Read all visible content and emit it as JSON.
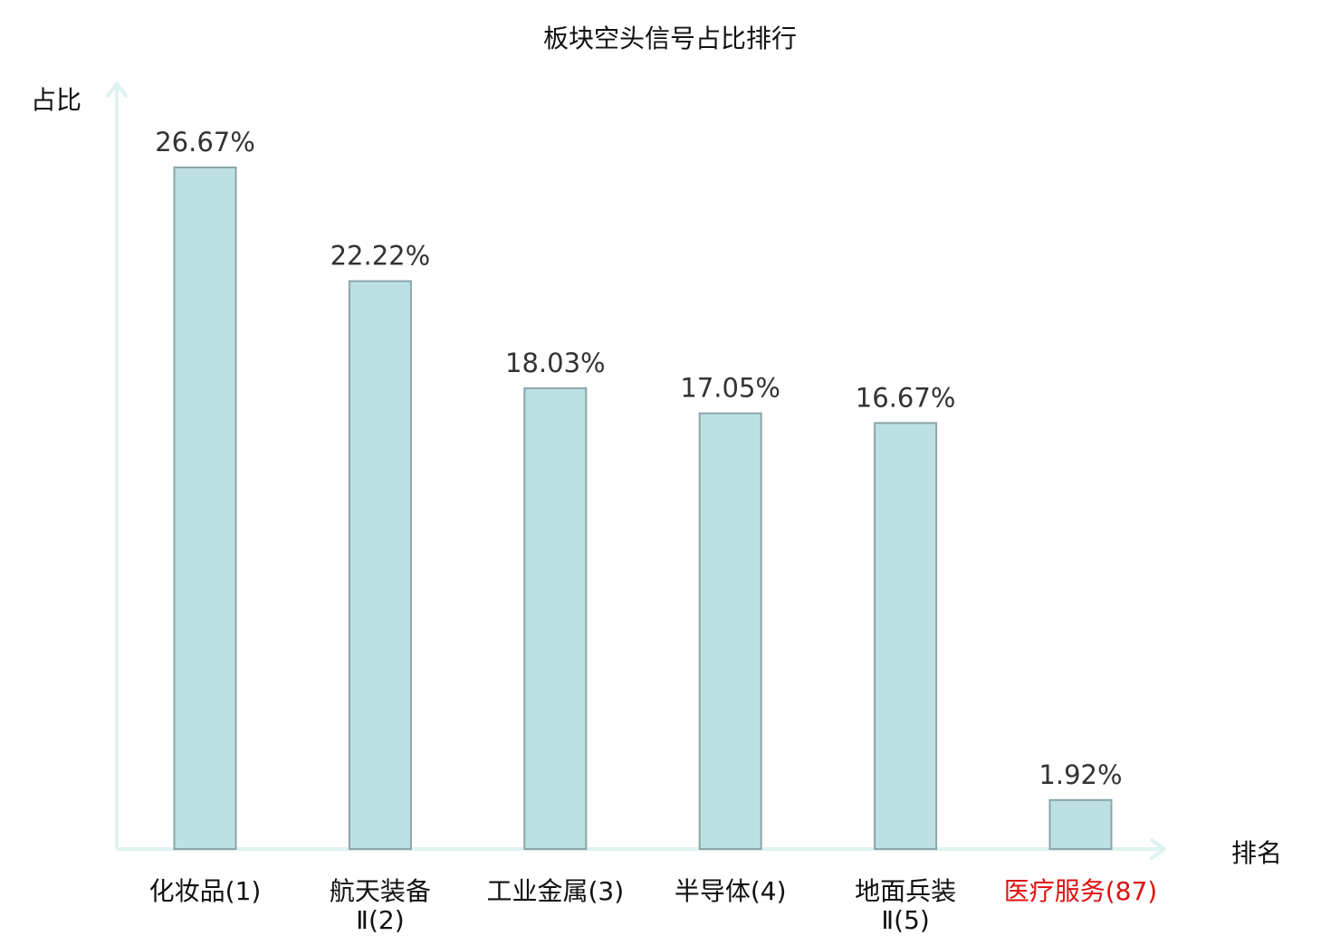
{
  "chart_data": {
    "type": "bar",
    "title": "板块空头信号占比排行",
    "ylabel": "占比",
    "xlabel": "排名",
    "categories": [
      [
        "化妆品(1)"
      ],
      [
        "航天装备",
        "Ⅱ(2)"
      ],
      [
        "工业金属(3)"
      ],
      [
        "半导体(4)"
      ],
      [
        "地面兵装",
        "Ⅱ(5)"
      ],
      [
        "医疗服务(87)"
      ]
    ],
    "values": [
      26.67,
      22.22,
      18.03,
      17.05,
      16.67,
      1.92
    ],
    "value_labels": [
      "26.67%",
      "22.22%",
      "18.03%",
      "17.05%",
      "16.67%",
      "1.92%"
    ],
    "highlight_index": 5,
    "ylim": [
      0,
      30
    ],
    "grid": false,
    "colors": {
      "bar_fill": "#bde0e3",
      "bar_stroke": "#8aa6a8",
      "axis": "#dff2ef",
      "text": "#333333",
      "highlight_text": "#e01010"
    }
  }
}
